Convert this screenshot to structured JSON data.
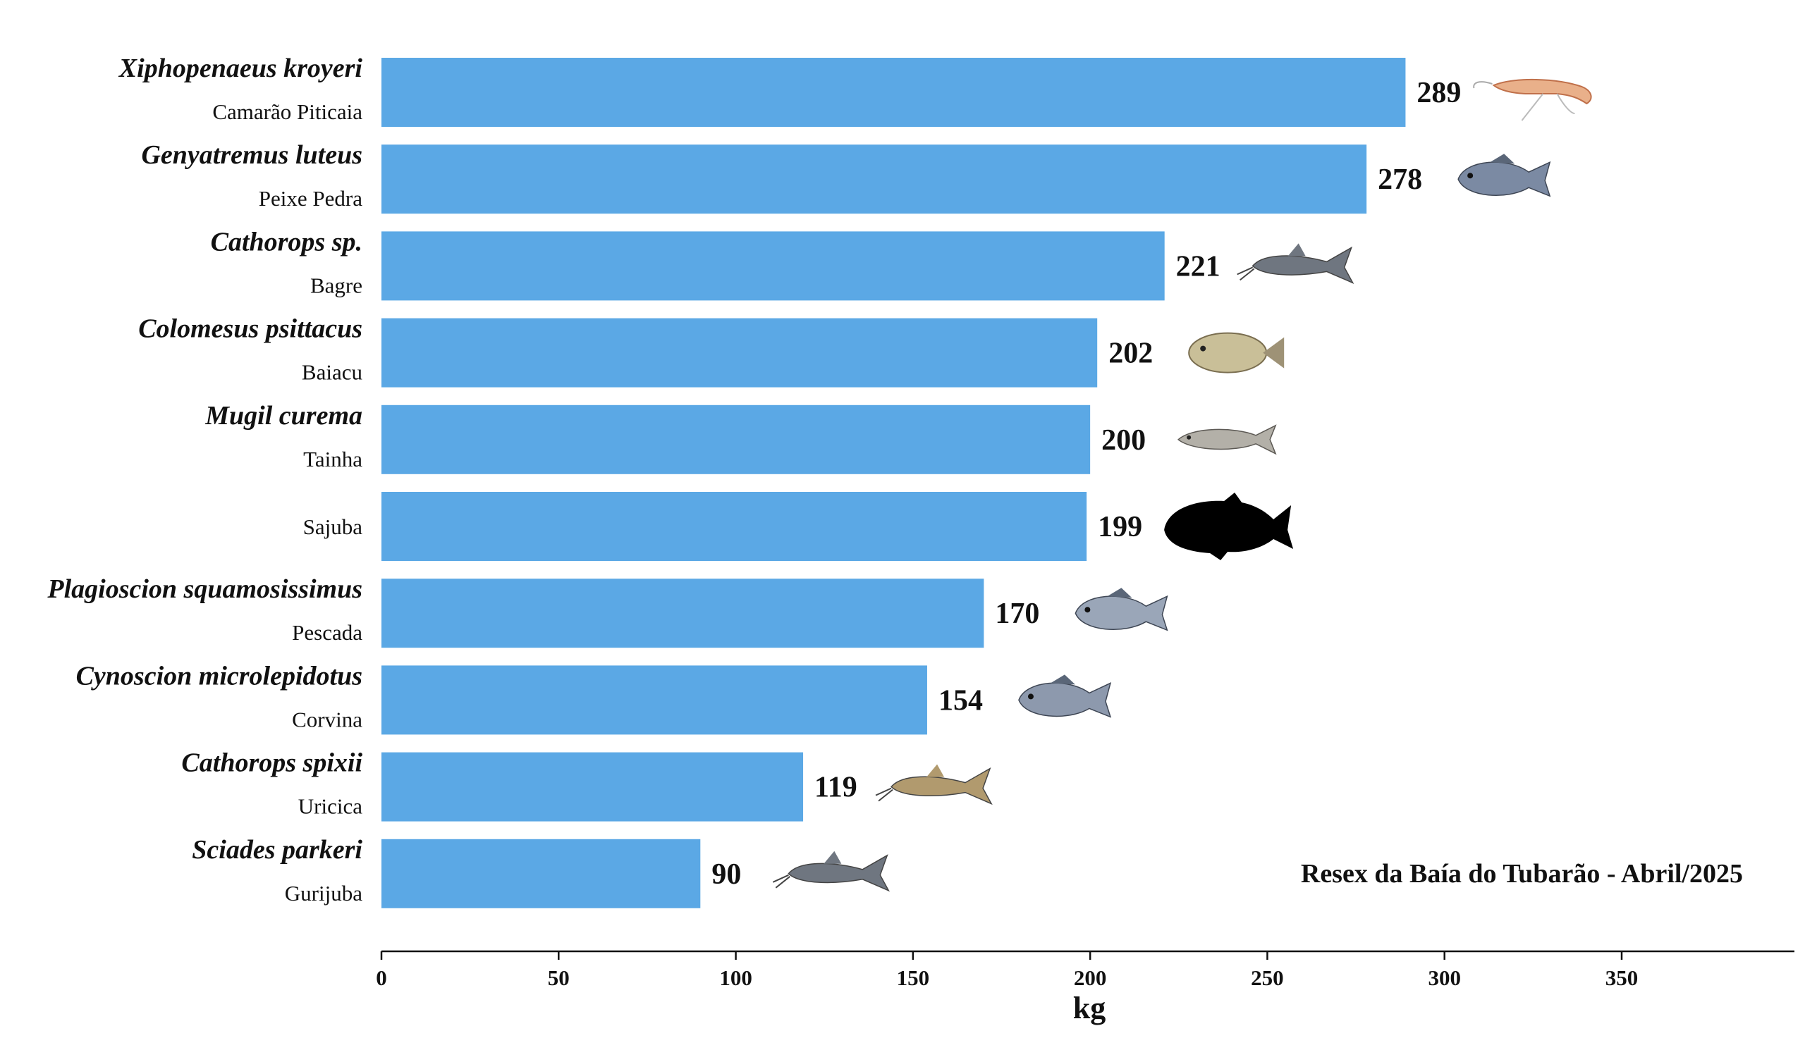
{
  "chart_data": {
    "type": "bar",
    "orientation": "horizontal",
    "categories": [
      {
        "scientific": "Xiphopenaeus kroyeri",
        "common": "Camarão Piticaia",
        "icon": "shrimp-icon"
      },
      {
        "scientific": "Genyatremus luteus",
        "common": "Peixe Pedra",
        "icon": "fish-icon"
      },
      {
        "scientific": "Cathorops sp.",
        "common": "Bagre",
        "icon": "catfish-icon"
      },
      {
        "scientific": "Colomesus psittacus",
        "common": "Baiacu",
        "icon": "pufferfish-icon"
      },
      {
        "scientific": "Mugil curema",
        "common": "Tainha",
        "icon": "mullet-icon"
      },
      {
        "scientific": "",
        "common": "Sajuba",
        "icon": "fish-silhouette-icon"
      },
      {
        "scientific": "Plagioscion squamosissimus",
        "common": "Pescada",
        "icon": "fish-icon"
      },
      {
        "scientific": "Cynoscion microlepidotus",
        "common": "Corvina",
        "icon": "fish-icon"
      },
      {
        "scientific": "Cathorops spixii",
        "common": "Uricica",
        "icon": "catfish-icon"
      },
      {
        "scientific": "Sciades parkeri",
        "common": "Gurijuba",
        "icon": "catfish-icon"
      }
    ],
    "values": [
      289,
      278,
      221,
      202,
      200,
      199,
      170,
      154,
      119,
      90
    ],
    "xlabel": "kg",
    "xlim": [
      0,
      375
    ],
    "xticks": [
      0,
      50,
      100,
      150,
      200,
      250,
      300,
      350
    ],
    "annotation": "Resex da Baía do Tubarão - Abril/2025",
    "bar_color": "#5ba8e5",
    "grid": false
  }
}
